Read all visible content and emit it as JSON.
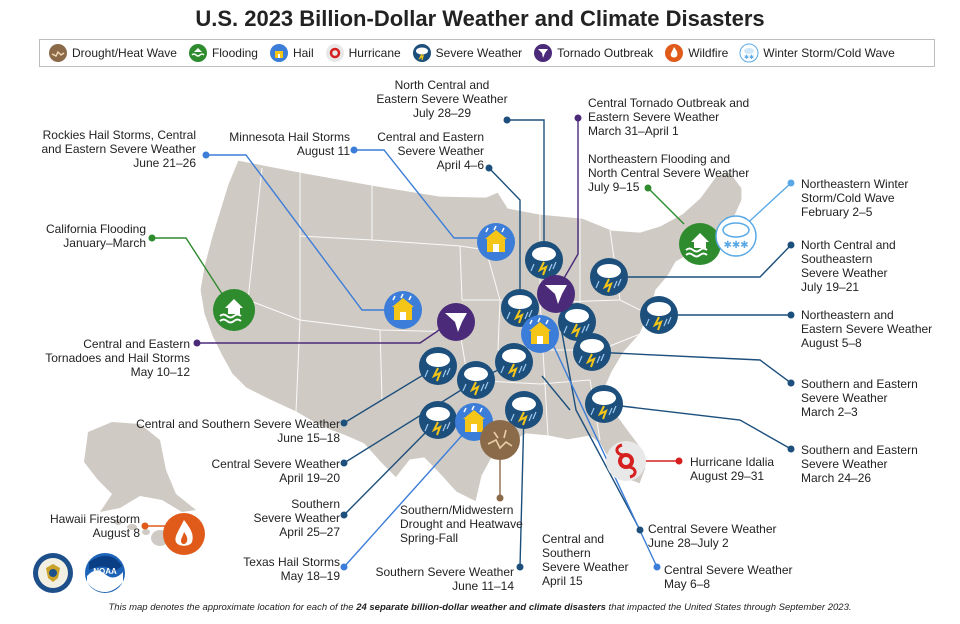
{
  "title": "U.S. 2023 Billion-Dollar Weather and Climate Disasters",
  "legend": [
    {
      "label": "Drought/Heat Wave",
      "icon": "drought-icon",
      "color": "#8b6a4a"
    },
    {
      "label": "Flooding",
      "icon": "flooding-icon",
      "color": "#2e8b2e"
    },
    {
      "label": "Hail",
      "icon": "hail-icon",
      "color": "#3b7dd8"
    },
    {
      "label": "Hurricane",
      "icon": "hurricane-icon",
      "color": "#d62020"
    },
    {
      "label": "Severe Weather",
      "icon": "severe-weather-icon",
      "color": "#1c4f7c"
    },
    {
      "label": "Tornado Outbreak",
      "icon": "tornado-icon",
      "color": "#4b2a7a"
    },
    {
      "label": "Wildfire",
      "icon": "wildfire-icon",
      "color": "#e05a1a"
    },
    {
      "label": "Winter Storm/Cold Wave",
      "icon": "winter-storm-icon",
      "color": "#5aa9e6"
    }
  ],
  "events": [
    {
      "label": "North Central and\nEastern Severe Weather\nJuly 28–29"
    },
    {
      "label": "Central Tornado Outbreak and\nEastern Severe Weather\nMarch 31–April 1"
    },
    {
      "label": "Rockies Hail Storms, Central\nand Eastern Severe Weather\nJune 21–26"
    },
    {
      "label": "Minnesota Hail Storms\nAugust 11"
    },
    {
      "label": "Central and Eastern\nSevere Weather\nApril 4–6"
    },
    {
      "label": "Northeastern Flooding and\nNorth Central Severe Weather\nJuly 9–15"
    },
    {
      "label": "Northeastern Winter\nStorm/Cold Wave\nFebruary 2–5"
    },
    {
      "label": "California Flooding\nJanuary–March"
    },
    {
      "label": "North Central and\nSoutheastern\nSevere Weather\nJuly 19–21"
    },
    {
      "label": "Northeastern and\nEastern Severe Weather\nAugust 5–8"
    },
    {
      "label": "Central and Eastern\nTornadoes and Hail Storms\nMay 10–12"
    },
    {
      "label": "Southern and Eastern\nSevere Weather\nMarch 2–3"
    },
    {
      "label": "Central and Southern Severe Weather\nJune 15–18"
    },
    {
      "label": "Southern and Eastern\nSevere Weather\nMarch 24–26"
    },
    {
      "label": "Central Severe Weather\nApril 19–20"
    },
    {
      "label": "Hurricane Idalia\nAugust 29–31"
    },
    {
      "label": "Southern\nSevere Weather\nApril 25–27"
    },
    {
      "label": "Hawaii Firestorm\nAugust 8"
    },
    {
      "label": "Southern/Midwestern\nDrought and Heatwave\nSpring-Fall"
    },
    {
      "label": "Central Severe Weather\nJune 28–July 2"
    },
    {
      "label": "Texas Hail Storms\nMay 18–19"
    },
    {
      "label": "Central and\nSouthern\nSevere Weather\nApril 15"
    },
    {
      "label": "Central Severe Weather\nMay 6–8"
    },
    {
      "label": "Southern Severe Weather\nJune 11–14"
    }
  ],
  "footer": {
    "prefix": "This map denotes the approximate location for each of the ",
    "bold": "24 separate billion-dollar weather and climate disasters",
    "suffix": " that impacted the United States through September 2023."
  },
  "logos": {
    "noaa": "NOAA"
  }
}
